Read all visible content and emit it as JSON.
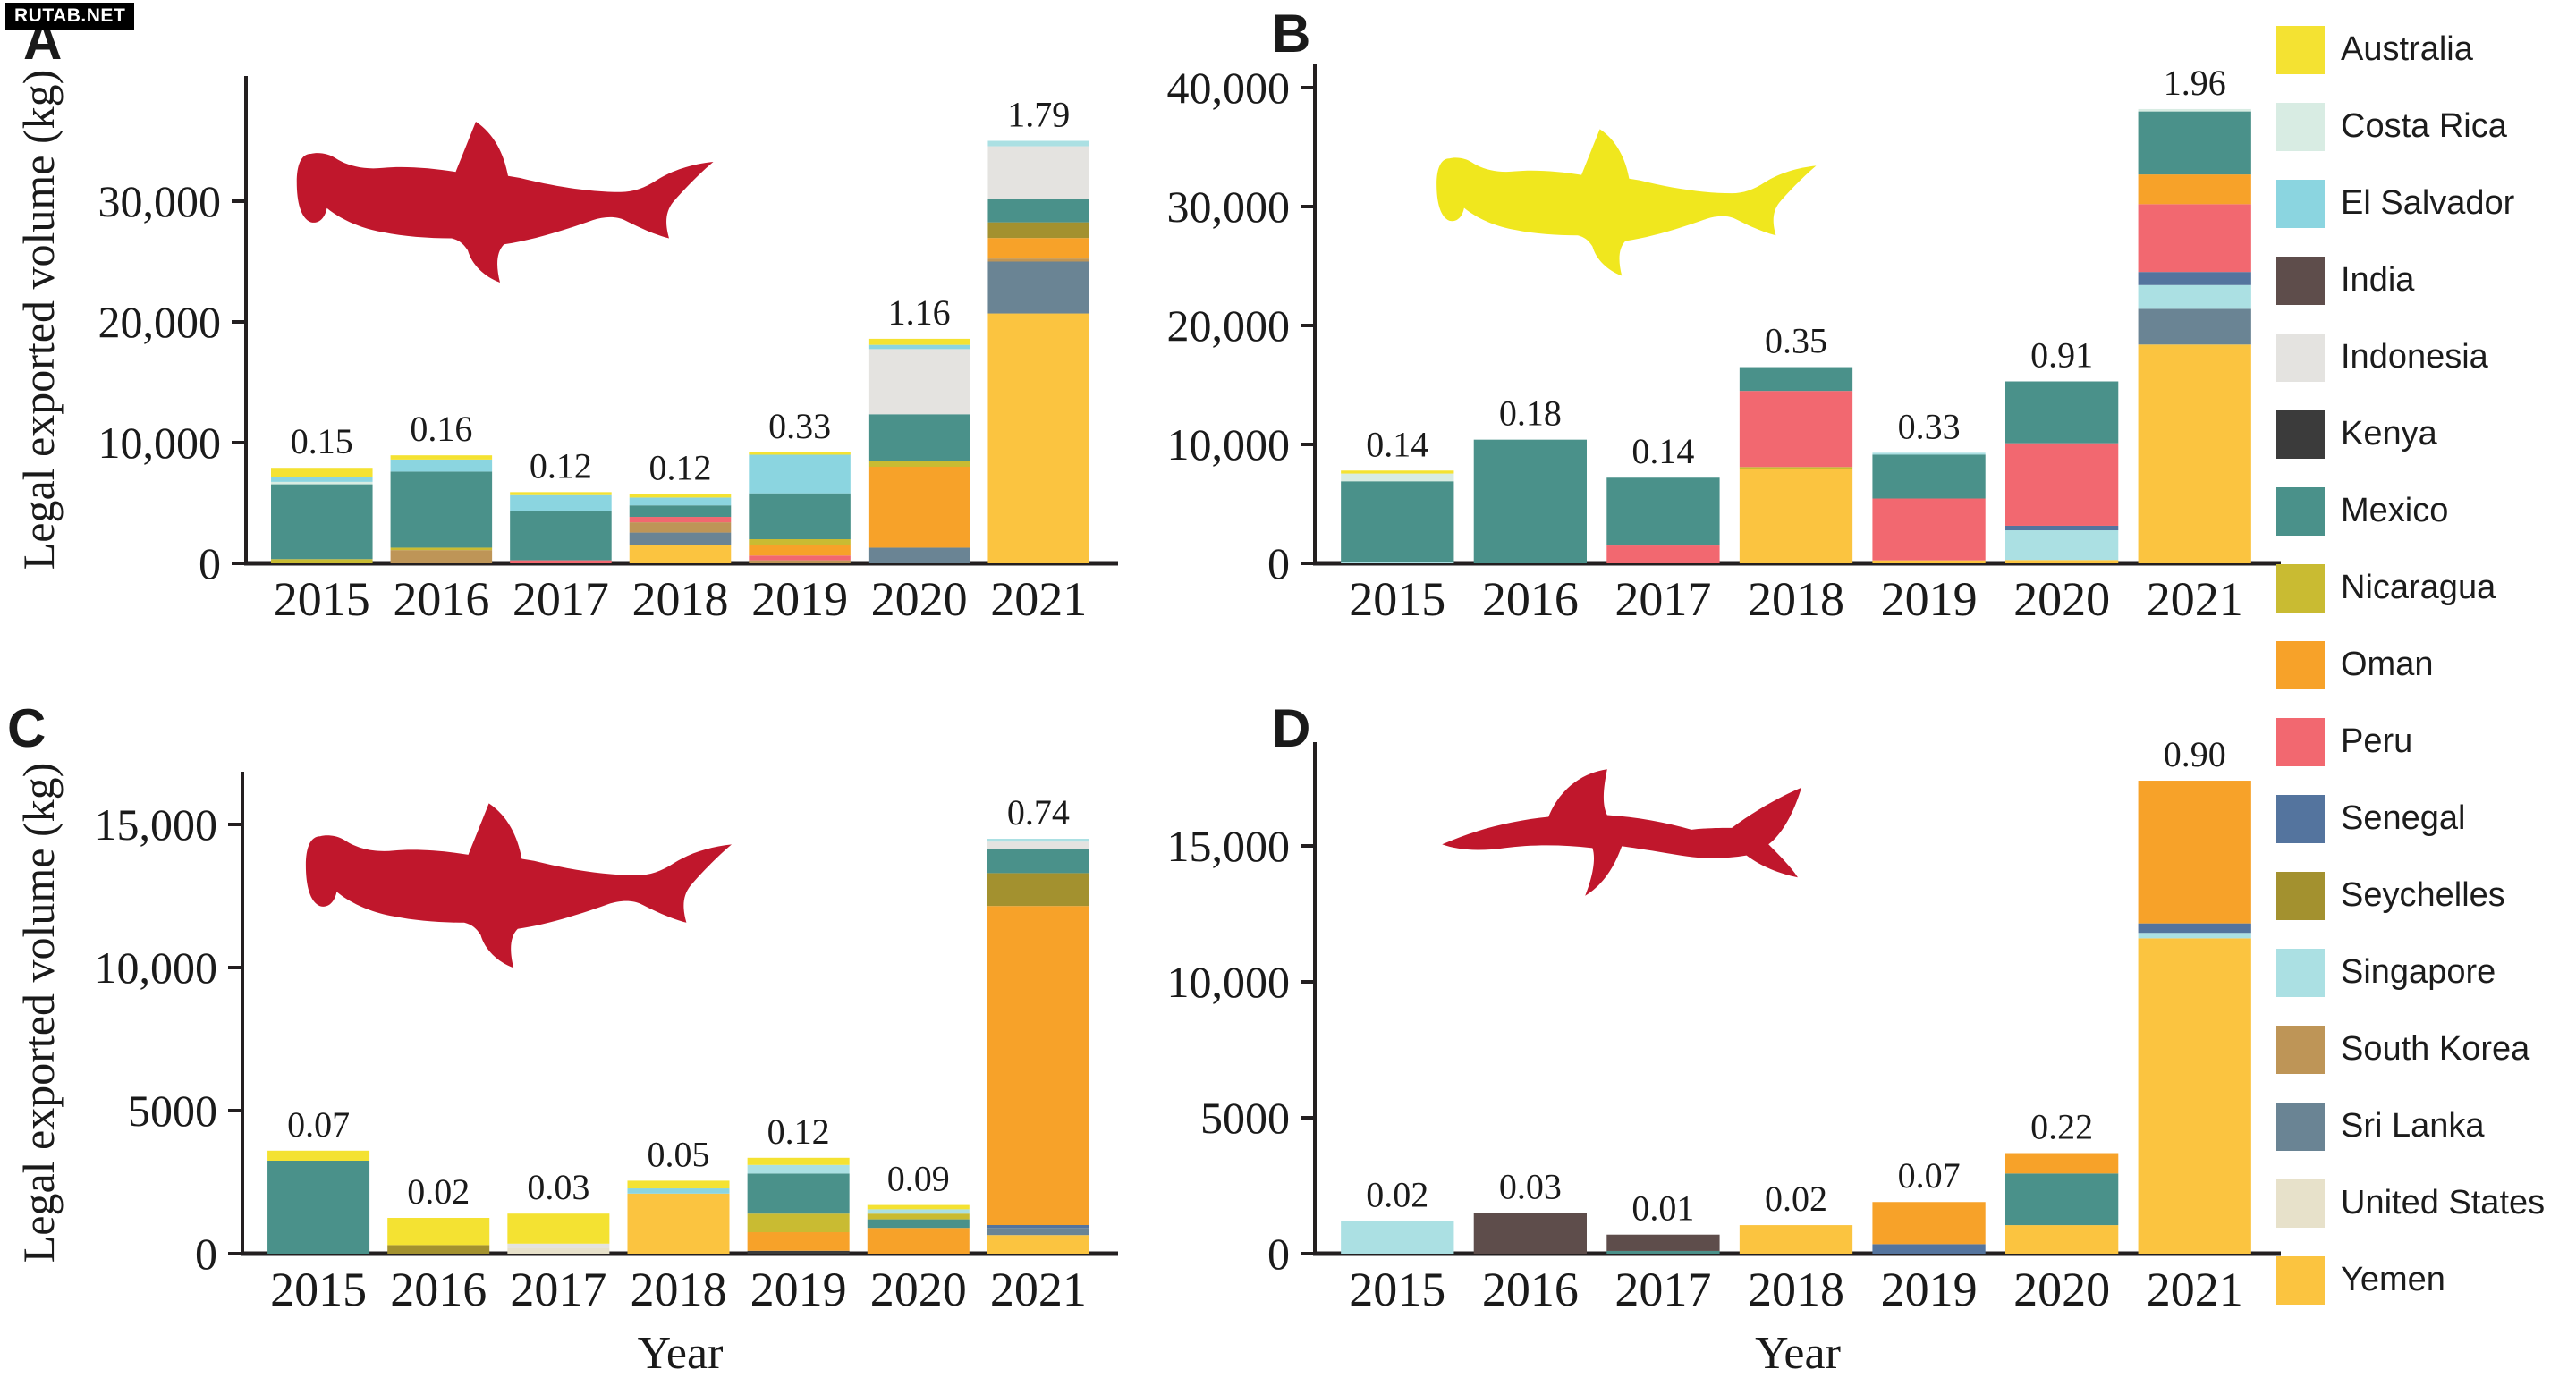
{
  "watermark": "RUTAB.NET",
  "legend": {
    "items": [
      {
        "label": "Australia",
        "color": "#F4E232"
      },
      {
        "label": "Costa Rica",
        "color": "#D8ECE3"
      },
      {
        "label": "El Salvador",
        "color": "#8BD5E0"
      },
      {
        "label": "India",
        "color": "#5E4D4B"
      },
      {
        "label": "Indonesia",
        "color": "#E4E3E0"
      },
      {
        "label": "Kenya",
        "color": "#3B3B3B"
      },
      {
        "label": "Mexico",
        "color": "#4A918A"
      },
      {
        "label": "Nicaragua",
        "color": "#C9BB32"
      },
      {
        "label": "Oman",
        "color": "#F7A229"
      },
      {
        "label": "Peru",
        "color": "#F26870"
      },
      {
        "label": "Senegal",
        "color": "#54749E"
      },
      {
        "label": "Seychelles",
        "color": "#A3912F"
      },
      {
        "label": "Singapore",
        "color": "#ABE0E3"
      },
      {
        "label": "South Korea",
        "color": "#BE9557"
      },
      {
        "label": "Sri Lanka",
        "color": "#6A8494"
      },
      {
        "label": "United States",
        "color": "#E7E1CA"
      },
      {
        "label": "Yemen",
        "color": "#FBC440"
      }
    ]
  },
  "chart_data": [
    {
      "type": "bar",
      "panel": "A",
      "title": "",
      "ylabel": "Legal exported volume (kg)",
      "xlabel": "",
      "icon": "hammerhead",
      "icon_color": "#C0172C",
      "ylim": [
        0,
        40300
      ],
      "yticks": [
        {
          "value": 0,
          "label": "0"
        },
        {
          "value": 10000,
          "label": "10,000"
        },
        {
          "value": 20000,
          "label": "20,000"
        },
        {
          "value": 30000,
          "label": "30,000"
        }
      ],
      "categories": [
        "2015",
        "2016",
        "2017",
        "2018",
        "2019",
        "2020",
        "2021"
      ],
      "bar_labels": [
        "0.15",
        "0.16",
        "0.12",
        "0.12",
        "0.33",
        "1.16",
        "1.79"
      ],
      "bars": [
        {
          "year": "2015",
          "segments": [
            {
              "country": "Nicaragua",
              "value": 350
            },
            {
              "country": "Mexico",
              "value": 6200
            },
            {
              "country": "Costa Rica",
              "value": 200
            },
            {
              "country": "El Salvador",
              "value": 420
            },
            {
              "country": "Australia",
              "value": 740
            }
          ]
        },
        {
          "year": "2016",
          "segments": [
            {
              "country": "South Korea",
              "value": 1100
            },
            {
              "country": "Nicaragua",
              "value": 200
            },
            {
              "country": "Mexico",
              "value": 6300
            },
            {
              "country": "El Salvador",
              "value": 1000
            },
            {
              "country": "Australia",
              "value": 350
            }
          ]
        },
        {
          "year": "2017",
          "segments": [
            {
              "country": "Peru",
              "value": 250
            },
            {
              "country": "Mexico",
              "value": 4100
            },
            {
              "country": "El Salvador",
              "value": 1300
            },
            {
              "country": "Australia",
              "value": 250
            }
          ]
        },
        {
          "year": "2018",
          "segments": [
            {
              "country": "Yemen",
              "value": 1550
            },
            {
              "country": "Sri Lanka",
              "value": 1000
            },
            {
              "country": "South Korea",
              "value": 850
            },
            {
              "country": "Peru",
              "value": 450
            },
            {
              "country": "Mexico",
              "value": 950
            },
            {
              "country": "El Salvador",
              "value": 650
            },
            {
              "country": "Australia",
              "value": 300
            }
          ]
        },
        {
          "year": "2019",
          "segments": [
            {
              "country": "South Korea",
              "value": 250
            },
            {
              "country": "Peru",
              "value": 400
            },
            {
              "country": "Oman",
              "value": 900
            },
            {
              "country": "Nicaragua",
              "value": 450
            },
            {
              "country": "Mexico",
              "value": 3800
            },
            {
              "country": "El Salvador",
              "value": 3200
            },
            {
              "country": "Australia",
              "value": 200
            }
          ]
        },
        {
          "year": "2020",
          "segments": [
            {
              "country": "Sri Lanka",
              "value": 1300
            },
            {
              "country": "Oman",
              "value": 6700
            },
            {
              "country": "Nicaragua",
              "value": 450
            },
            {
              "country": "Mexico",
              "value": 3900
            },
            {
              "country": "Indonesia",
              "value": 5400
            },
            {
              "country": "El Salvador",
              "value": 350
            },
            {
              "country": "Australia",
              "value": 500
            }
          ]
        },
        {
          "year": "2021",
          "segments": [
            {
              "country": "Yemen",
              "value": 20700
            },
            {
              "country": "Sri Lanka",
              "value": 4300
            },
            {
              "country": "South Korea",
              "value": 250
            },
            {
              "country": "Oman",
              "value": 1700
            },
            {
              "country": "Seychelles",
              "value": 1300
            },
            {
              "country": "Mexico",
              "value": 1900
            },
            {
              "country": "Indonesia",
              "value": 4400
            },
            {
              "country": "Singapore",
              "value": 450
            }
          ]
        }
      ]
    },
    {
      "type": "bar",
      "panel": "B",
      "title": "",
      "ylabel": "",
      "xlabel": "",
      "icon": "hammerhead",
      "icon_color": "#F0E71E",
      "ylim": [
        0,
        41000
      ],
      "yticks": [
        {
          "value": 0,
          "label": "0"
        },
        {
          "value": 10000,
          "label": "10,000"
        },
        {
          "value": 20000,
          "label": "20,000"
        },
        {
          "value": 30000,
          "label": "30,000"
        },
        {
          "value": 40000,
          "label": "40,000"
        }
      ],
      "categories": [
        "2015",
        "2016",
        "2017",
        "2018",
        "2019",
        "2020",
        "2021"
      ],
      "bar_labels": [
        "0.14",
        "0.18",
        "0.14",
        "0.35",
        "0.33",
        "0.91",
        "1.96"
      ],
      "bars": [
        {
          "year": "2015",
          "segments": [
            {
              "country": "Singapore",
              "value": 150
            },
            {
              "country": "Mexico",
              "value": 6750
            },
            {
              "country": "Costa Rica",
              "value": 650
            },
            {
              "country": "Australia",
              "value": 250
            }
          ]
        },
        {
          "year": "2016",
          "segments": [
            {
              "country": "Mexico",
              "value": 10400
            }
          ]
        },
        {
          "year": "2017",
          "segments": [
            {
              "country": "Peru",
              "value": 1500
            },
            {
              "country": "Mexico",
              "value": 5700
            }
          ]
        },
        {
          "year": "2018",
          "segments": [
            {
              "country": "Yemen",
              "value": 7900
            },
            {
              "country": "Nicaragua",
              "value": 200
            },
            {
              "country": "Peru",
              "value": 6400
            },
            {
              "country": "Mexico",
              "value": 2000
            }
          ]
        },
        {
          "year": "2019",
          "segments": [
            {
              "country": "Yemen",
              "value": 250
            },
            {
              "country": "Peru",
              "value": 5200
            },
            {
              "country": "Mexico",
              "value": 3700
            },
            {
              "country": "Singapore",
              "value": 150
            }
          ]
        },
        {
          "year": "2020",
          "segments": [
            {
              "country": "Yemen",
              "value": 280
            },
            {
              "country": "Singapore",
              "value": 2500
            },
            {
              "country": "Senegal",
              "value": 380
            },
            {
              "country": "Peru",
              "value": 6940
            },
            {
              "country": "Mexico",
              "value": 5200
            }
          ]
        },
        {
          "year": "2021",
          "segments": [
            {
              "country": "Yemen",
              "value": 18400
            },
            {
              "country": "Sri Lanka",
              "value": 3000
            },
            {
              "country": "Singapore",
              "value": 2000
            },
            {
              "country": "Senegal",
              "value": 1100
            },
            {
              "country": "Peru",
              "value": 5700
            },
            {
              "country": "Oman",
              "value": 2500
            },
            {
              "country": "Mexico",
              "value": 5300
            },
            {
              "country": "Costa Rica",
              "value": 200
            }
          ]
        }
      ]
    },
    {
      "type": "bar",
      "panel": "C",
      "title": "",
      "ylabel": "Legal exported volume (kg)",
      "xlabel": "Year",
      "icon": "hammerhead",
      "icon_color": "#C0172C",
      "ylim": [
        0,
        16900
      ],
      "yticks": [
        {
          "value": 0,
          "label": "0"
        },
        {
          "value": 5000,
          "label": "5000"
        },
        {
          "value": 10000,
          "label": "10,000"
        },
        {
          "value": 15000,
          "label": "15,000"
        }
      ],
      "categories": [
        "2015",
        "2016",
        "2017",
        "2018",
        "2019",
        "2020",
        "2021"
      ],
      "bar_labels": [
        "0.07",
        "0.02",
        "0.03",
        "0.05",
        "0.12",
        "0.09",
        "0.74"
      ],
      "bars": [
        {
          "year": "2015",
          "segments": [
            {
              "country": "Mexico",
              "value": 3250
            },
            {
              "country": "Australia",
              "value": 350
            }
          ]
        },
        {
          "year": "2016",
          "segments": [
            {
              "country": "Seychelles",
              "value": 300
            },
            {
              "country": "Australia",
              "value": 950
            }
          ]
        },
        {
          "year": "2017",
          "segments": [
            {
              "country": "United States",
              "value": 200
            },
            {
              "country": "Indonesia",
              "value": 150
            },
            {
              "country": "Australia",
              "value": 1050
            }
          ]
        },
        {
          "year": "2018",
          "segments": [
            {
              "country": "Yemen",
              "value": 2100
            },
            {
              "country": "El Salvador",
              "value": 180
            },
            {
              "country": "Australia",
              "value": 270
            }
          ]
        },
        {
          "year": "2019",
          "segments": [
            {
              "country": "Kenya",
              "value": 100
            },
            {
              "country": "Oman",
              "value": 650
            },
            {
              "country": "Nicaragua",
              "value": 650
            },
            {
              "country": "Mexico",
              "value": 1400
            },
            {
              "country": "Singapore",
              "value": 300
            },
            {
              "country": "Australia",
              "value": 250
            }
          ]
        },
        {
          "year": "2020",
          "segments": [
            {
              "country": "Oman",
              "value": 900
            },
            {
              "country": "Mexico",
              "value": 300
            },
            {
              "country": "Nicaragua",
              "value": 200
            },
            {
              "country": "Singapore",
              "value": 150
            },
            {
              "country": "Australia",
              "value": 150
            }
          ]
        },
        {
          "year": "2021",
          "segments": [
            {
              "country": "Yemen",
              "value": 650
            },
            {
              "country": "Sri Lanka",
              "value": 250
            },
            {
              "country": "Senegal",
              "value": 100
            },
            {
              "country": "Oman",
              "value": 11150
            },
            {
              "country": "Seychelles",
              "value": 1150
            },
            {
              "country": "Mexico",
              "value": 850
            },
            {
              "country": "Indonesia",
              "value": 250
            },
            {
              "country": "Singapore",
              "value": 100
            }
          ]
        }
      ]
    },
    {
      "type": "bar",
      "panel": "D",
      "title": "",
      "ylabel": "",
      "xlabel": "Year",
      "icon": "requiem",
      "icon_color": "#C0172C",
      "ylim": [
        0,
        18800
      ],
      "yticks": [
        {
          "value": 0,
          "label": "0"
        },
        {
          "value": 5000,
          "label": "5000"
        },
        {
          "value": 10000,
          "label": "10,000"
        },
        {
          "value": 15000,
          "label": "15,000"
        }
      ],
      "categories": [
        "2015",
        "2016",
        "2017",
        "2018",
        "2019",
        "2020",
        "2021"
      ],
      "bar_labels": [
        "0.02",
        "0.03",
        "0.01",
        "0.02",
        "0.07",
        "0.22",
        "0.90"
      ],
      "bars": [
        {
          "year": "2015",
          "segments": [
            {
              "country": "Singapore",
              "value": 1200
            }
          ]
        },
        {
          "year": "2016",
          "segments": [
            {
              "country": "India",
              "value": 1500
            }
          ]
        },
        {
          "year": "2017",
          "segments": [
            {
              "country": "Mexico",
              "value": 100
            },
            {
              "country": "India",
              "value": 600
            }
          ]
        },
        {
          "year": "2018",
          "segments": [
            {
              "country": "Yemen",
              "value": 1050
            }
          ]
        },
        {
          "year": "2019",
          "segments": [
            {
              "country": "Senegal",
              "value": 350
            },
            {
              "country": "Oman",
              "value": 1550
            }
          ]
        },
        {
          "year": "2020",
          "segments": [
            {
              "country": "Yemen",
              "value": 1050
            },
            {
              "country": "Mexico",
              "value": 1900
            },
            {
              "country": "Oman",
              "value": 750
            }
          ]
        },
        {
          "year": "2021",
          "segments": [
            {
              "country": "Yemen",
              "value": 11600
            },
            {
              "country": "Singapore",
              "value": 200
            },
            {
              "country": "Senegal",
              "value": 350
            },
            {
              "country": "Oman",
              "value": 5250
            }
          ]
        }
      ]
    }
  ]
}
